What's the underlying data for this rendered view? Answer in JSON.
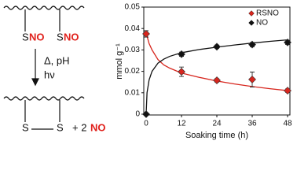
{
  "scheme": {
    "top_s1": "S",
    "top_no1": "NO",
    "top_s2": "S",
    "top_no2": "NO",
    "condition1": "Δ, pH",
    "condition2": "hν",
    "bottom_s1": "S",
    "bottom_s2": "S",
    "plus": "+ 2",
    "product": "NO"
  },
  "chart_data": {
    "type": "scatter",
    "xlabel": "Soaking time (h)",
    "ylabel": "mmol g⁻¹",
    "xlim": [
      0,
      48
    ],
    "xticks": [
      0,
      12,
      24,
      36,
      48
    ],
    "ylim": [
      0,
      0.05
    ],
    "yticks": [
      0,
      0.01,
      0.02,
      0.03,
      0.04,
      0.05
    ],
    "legend": "top-right",
    "series": [
      {
        "name": "RSNO",
        "color": "#d7261e",
        "x": [
          0,
          12,
          24,
          36,
          48
        ],
        "values": [
          0.0375,
          0.0198,
          0.0158,
          0.0162,
          0.011
        ],
        "errors": [
          0.0015,
          0.0022,
          0.0008,
          0.0035,
          0.0008
        ],
        "fit_x": [
          0,
          1,
          2,
          4,
          6,
          8,
          12,
          18,
          24,
          30,
          36,
          42,
          48
        ],
        "fit_values": [
          0.038,
          0.033,
          0.03,
          0.0255,
          0.023,
          0.0215,
          0.0192,
          0.0172,
          0.0155,
          0.0141,
          0.0129,
          0.0119,
          0.011
        ]
      },
      {
        "name": "NO",
        "color": "#111111",
        "x": [
          0,
          12,
          24,
          36,
          48
        ],
        "values": [
          0,
          0.028,
          0.0315,
          0.0325,
          0.0335
        ],
        "errors": [
          0,
          0.001,
          0.0008,
          0.001,
          0.001
        ],
        "fit_x": [
          0,
          0.3,
          1,
          2,
          4,
          6,
          8,
          12,
          18,
          24,
          30,
          36,
          42,
          48
        ],
        "fit_values": [
          0,
          0.01,
          0.016,
          0.02,
          0.0238,
          0.0257,
          0.027,
          0.0287,
          0.0302,
          0.0313,
          0.0323,
          0.0332,
          0.034,
          0.0347
        ]
      }
    ]
  }
}
